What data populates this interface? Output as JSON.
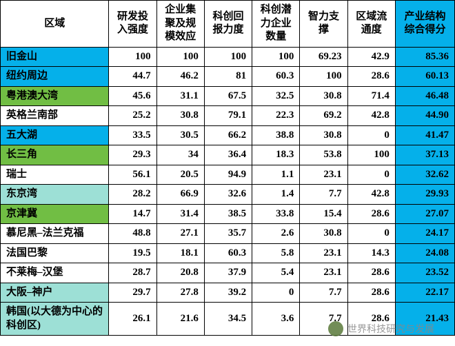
{
  "columns": [
    "区域",
    "研发投入强度",
    "企业集聚及规模效应",
    "科创回报力度",
    "科创潜力企业数量",
    "智力支撑",
    "区域流通度",
    "产业结构综合得分"
  ],
  "row_colors": {
    "blue": "#05b0ea",
    "green": "#71be44",
    "teal": "#9de0d6",
    "white": "#ffffff"
  },
  "rows": [
    {
      "color": "blue",
      "region": "旧金山",
      "v": [
        "100",
        "100",
        "100",
        "100",
        "69.23",
        "42.9",
        "85.36"
      ]
    },
    {
      "color": "blue",
      "region": "纽约周边",
      "v": [
        "44.7",
        "46.2",
        "81",
        "60.3",
        "100",
        "28.6",
        "60.13"
      ]
    },
    {
      "color": "green",
      "region": "粤港澳大湾",
      "v": [
        "45.6",
        "31.1",
        "67.5",
        "32.5",
        "30.8",
        "71.4",
        "46.48"
      ]
    },
    {
      "color": "white",
      "region": "英格兰南部",
      "v": [
        "25.2",
        "30.8",
        "79.1",
        "22.3",
        "69.2",
        "42.8",
        "44.90"
      ]
    },
    {
      "color": "blue",
      "region": "五大湖",
      "v": [
        "33.5",
        "30.5",
        "66.2",
        "38.8",
        "30.8",
        "0",
        "41.47"
      ]
    },
    {
      "color": "green",
      "region": "长三角",
      "v": [
        "29.3",
        "34",
        "36.4",
        "18.3",
        "53.8",
        "100",
        "37.13"
      ]
    },
    {
      "color": "white",
      "region": "瑞士",
      "v": [
        "56.1",
        "20.5",
        "94.9",
        "1.1",
        "23.1",
        "0",
        "32.62"
      ]
    },
    {
      "color": "teal",
      "region": "东京湾",
      "v": [
        "28.2",
        "66.9",
        "32.6",
        "1.4",
        "7.7",
        "42.8",
        "29.93"
      ]
    },
    {
      "color": "green",
      "region": "京津冀",
      "v": [
        "14.7",
        "31.4",
        "38.5",
        "33.8",
        "15.4",
        "28.6",
        "27.07"
      ]
    },
    {
      "color": "white",
      "region": "慕尼黑–法兰克福",
      "v": [
        "48.8",
        "27.1",
        "35.7",
        "2.6",
        "30.8",
        "0",
        "24.17"
      ]
    },
    {
      "color": "white",
      "region": "法国巴黎",
      "v": [
        "19.5",
        "18.1",
        "60.3",
        "5.8",
        "23.1",
        "14.3",
        "24.08"
      ]
    },
    {
      "color": "white",
      "region": "不莱梅–汉堡",
      "v": [
        "28.7",
        "20.8",
        "37.9",
        "5.4",
        "23.1",
        "28.6",
        "23.52"
      ]
    },
    {
      "color": "teal",
      "region": "大阪–神户",
      "v": [
        "29.7",
        "27.8",
        "39.2",
        "0",
        "7.7",
        "28.6",
        "22.17"
      ]
    },
    {
      "color": "teal",
      "region": "韩国(以大德为中心的科创区)",
      "v": [
        "26.1",
        "21.6",
        "34.5",
        "3.6",
        "7.7",
        "28.6",
        "21.43"
      ]
    }
  ],
  "watermark": "世界科技研究与发展"
}
